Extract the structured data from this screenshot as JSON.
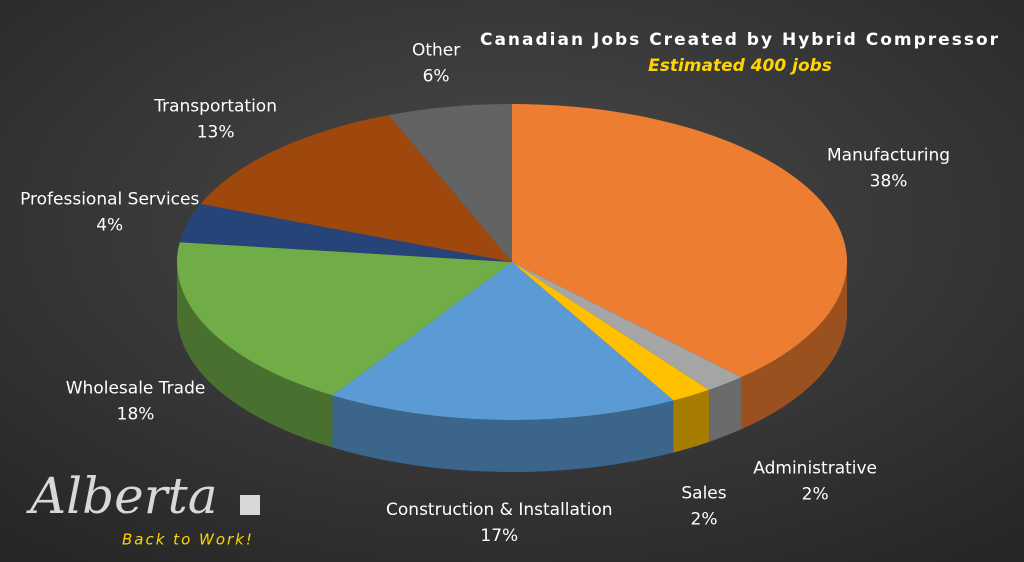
{
  "chart_data": {
    "type": "pie",
    "title": "Canadian Jobs Created by Hybrid Compressor",
    "subtitle": "Estimated 400 jobs",
    "categories": [
      "Manufacturing",
      "Administrative",
      "Sales",
      "Construction & Installation",
      "Wholesale Trade",
      "Professional Services",
      "Transportation",
      "Other"
    ],
    "values": [
      38,
      2,
      2,
      17,
      18,
      4,
      13,
      6
    ],
    "value_labels": [
      "38%",
      "2%",
      "2%",
      "17%",
      "18%",
      "4%",
      "13%",
      "6%"
    ],
    "colors": [
      "#ed7d31",
      "#a5a5a5",
      "#ffc000",
      "#5b9bd5",
      "#70ad47",
      "#264478",
      "#9e480e",
      "#636363"
    ]
  },
  "logo": {
    "text": "Alberta",
    "tagline": "Back to Work!"
  }
}
